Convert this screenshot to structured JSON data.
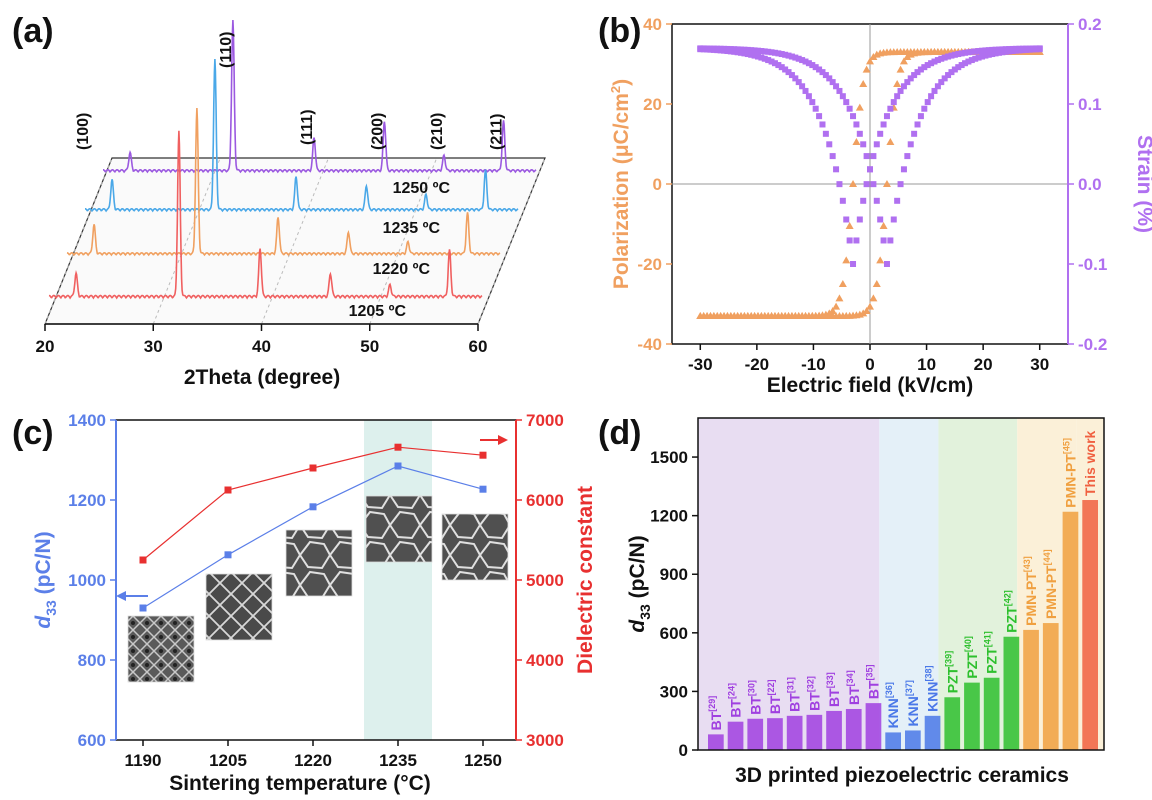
{
  "panels": {
    "a": {
      "label": "(a)",
      "xlabel": "2Theta (degree)",
      "temps": [
        "1250 ºC",
        "1235 ºC",
        "1220 ºC",
        "1205 ºC"
      ]
    },
    "b": {
      "label": "(b)",
      "xlabel": "Electric field (kV/cm)",
      "ylabel_left": "Polarization (μC/cm",
      "ylabel_left_sup": "2",
      "ylabel_left_end": ")",
      "ylabel_right": "Strain (%)"
    },
    "c": {
      "label": "(c)",
      "xlabel": "Sintering temperature (°C)",
      "ylabel_left_main": "d",
      "ylabel_left_sub": "33",
      "ylabel_left_rest": " (pC/N)",
      "ylabel_right": "Dielectric constant"
    },
    "d": {
      "label": "(d)",
      "xlabel": "3D printed piezoelectric ceramics",
      "ylabel_main": "d",
      "ylabel_sub": "33",
      "ylabel_rest": " (pC/N)"
    }
  },
  "chart_data": [
    {
      "type": "line",
      "panel": "a",
      "xlabel": "2Theta (degree)",
      "xlim": [
        20,
        60
      ],
      "xticks": [
        "20",
        "30",
        "40",
        "50",
        "60"
      ],
      "series": [
        {
          "name": "1250 ºC",
          "color": "#9b59e0",
          "peaks": [
            [
              22.5,
              0.12
            ],
            [
              32.0,
              1.0
            ],
            [
              39.5,
              0.22
            ],
            [
              46.0,
              0.33
            ],
            [
              51.5,
              0.1
            ],
            [
              57.0,
              0.33
            ]
          ]
        },
        {
          "name": "1235 ºC",
          "color": "#4aa8e8",
          "peaks": [
            [
              22.5,
              0.2
            ],
            [
              32.0,
              1.0
            ],
            [
              39.5,
              0.22
            ],
            [
              46.0,
              0.16
            ],
            [
              51.5,
              0.1
            ],
            [
              57.0,
              0.26
            ]
          ]
        },
        {
          "name": "1220 ºC",
          "color": "#f0a060",
          "peaks": [
            [
              22.5,
              0.2
            ],
            [
              32.0,
              1.0
            ],
            [
              39.5,
              0.25
            ],
            [
              46.0,
              0.15
            ],
            [
              51.5,
              0.08
            ],
            [
              57.0,
              0.28
            ]
          ]
        },
        {
          "name": "1205 ºC",
          "color": "#f06060",
          "peaks": [
            [
              22.5,
              0.14
            ],
            [
              32.0,
              1.0
            ],
            [
              39.5,
              0.29
            ],
            [
              46.0,
              0.14
            ],
            [
              51.5,
              0.07
            ],
            [
              57.0,
              0.28
            ]
          ]
        }
      ],
      "peak_labels": [
        {
          "text": "(100)",
          "x": 22.5
        },
        {
          "text": "(110)",
          "x": 32.0
        },
        {
          "text": "(111)",
          "x": 39.5
        },
        {
          "text": "(200)",
          "x": 46.0
        },
        {
          "text": "(210)",
          "x": 51.5
        },
        {
          "text": "(211)",
          "x": 57.0
        }
      ]
    },
    {
      "type": "line",
      "panel": "b",
      "xlabel": "Electric field (kV/cm)",
      "xlim": [
        -35,
        35
      ],
      "ylim_left": [
        -40,
        40
      ],
      "ylim_right": [
        -0.2,
        0.2
      ],
      "xticks": [
        -30,
        -20,
        -10,
        0,
        10,
        20,
        30
      ],
      "yticks_left": [
        -40,
        -20,
        0,
        20,
        40
      ],
      "yticks_right": [
        -0.2,
        -0.1,
        0.0,
        0.1,
        0.2
      ],
      "ytick_labels_right": [
        "-0.2",
        "-0.1",
        "0.0",
        "0.1",
        "0.2"
      ],
      "series": [
        {
          "name": "Polarization",
          "color": "#f0a060",
          "marker": "triangle",
          "Pmax": 33,
          "Pr": 22,
          "Ec": 3.0
        },
        {
          "name": "Strain",
          "color": "#b070f0",
          "marker": "square",
          "Smax": 0.17,
          "Smin": -0.1,
          "Ec": 3.0
        }
      ]
    },
    {
      "type": "line",
      "panel": "c",
      "categories": [
        "1190",
        "1205",
        "1220",
        "1235",
        "1250"
      ],
      "xlabel": "Sintering temperature (°C)",
      "ylim_left": [
        600,
        1400
      ],
      "ylim_right": [
        3000,
        7000
      ],
      "yticks_left": [
        600,
        800,
        1000,
        1200,
        1400
      ],
      "yticks_right": [
        3000,
        4000,
        5000,
        6000,
        7000
      ],
      "highlight": "1235",
      "series": [
        {
          "name": "d33",
          "axis": "left",
          "color": "#5b7fe8",
          "values": [
            930,
            1063,
            1183,
            1285,
            1227
          ]
        },
        {
          "name": "Dielectric constant",
          "axis": "right",
          "color": "#e83030",
          "values": [
            5250,
            6125,
            6400,
            6660,
            6560
          ]
        }
      ]
    },
    {
      "type": "bar",
      "panel": "d",
      "ylabel": "d33 (pC/N)",
      "xlabel": "3D printed piezoelectric ceramics",
      "ylim": [
        0,
        1700
      ],
      "yticks": [
        0,
        300,
        600,
        900,
        1200,
        1500
      ],
      "groups": [
        {
          "family": "BT",
          "color": "#a040e0",
          "bg": "#e8ddf2"
        },
        {
          "family": "KNN",
          "color": "#4a78e8",
          "bg": "#e4f0f8"
        },
        {
          "family": "PZT",
          "color": "#2ec02e",
          "bg": "#e2f2dc"
        },
        {
          "family": "PMN-PT",
          "color": "#f0a040",
          "bg": "#fbf0d8"
        },
        {
          "family": "This work",
          "color": "#f06040",
          "bg": "#fbf0d8"
        }
      ],
      "bars": [
        {
          "label": "BT",
          "ref": "29",
          "family": "BT",
          "value": 80
        },
        {
          "label": "BT",
          "ref": "24",
          "family": "BT",
          "value": 145
        },
        {
          "label": "BT",
          "ref": "30",
          "family": "BT",
          "value": 160
        },
        {
          "label": "BT",
          "ref": "22",
          "family": "BT",
          "value": 163
        },
        {
          "label": "BT",
          "ref": "31",
          "family": "BT",
          "value": 175
        },
        {
          "label": "BT",
          "ref": "32",
          "family": "BT",
          "value": 180
        },
        {
          "label": "BT",
          "ref": "33",
          "family": "BT",
          "value": 200
        },
        {
          "label": "BT",
          "ref": "34",
          "family": "BT",
          "value": 210
        },
        {
          "label": "BT",
          "ref": "35",
          "family": "BT",
          "value": 240
        },
        {
          "label": "KNN",
          "ref": "36",
          "family": "KNN",
          "value": 90
        },
        {
          "label": "KNN",
          "ref": "37",
          "family": "KNN",
          "value": 100
        },
        {
          "label": "KNN",
          "ref": "38",
          "family": "KNN",
          "value": 175
        },
        {
          "label": "PZT",
          "ref": "39",
          "family": "PZT",
          "value": 270
        },
        {
          "label": "PZT",
          "ref": "40",
          "family": "PZT",
          "value": 345
        },
        {
          "label": "PZT",
          "ref": "41",
          "family": "PZT",
          "value": 370
        },
        {
          "label": "PZT",
          "ref": "42",
          "family": "PZT",
          "value": 580
        },
        {
          "label": "PMN-PT",
          "ref": "43",
          "family": "PMN-PT",
          "value": 615
        },
        {
          "label": "PMN-PT",
          "ref": "44",
          "family": "PMN-PT",
          "value": 650
        },
        {
          "label": "PMN-PT",
          "ref": "45",
          "family": "PMN-PT",
          "value": 1220
        },
        {
          "label": "This work",
          "ref": "",
          "family": "This work",
          "value": 1280
        }
      ]
    }
  ]
}
